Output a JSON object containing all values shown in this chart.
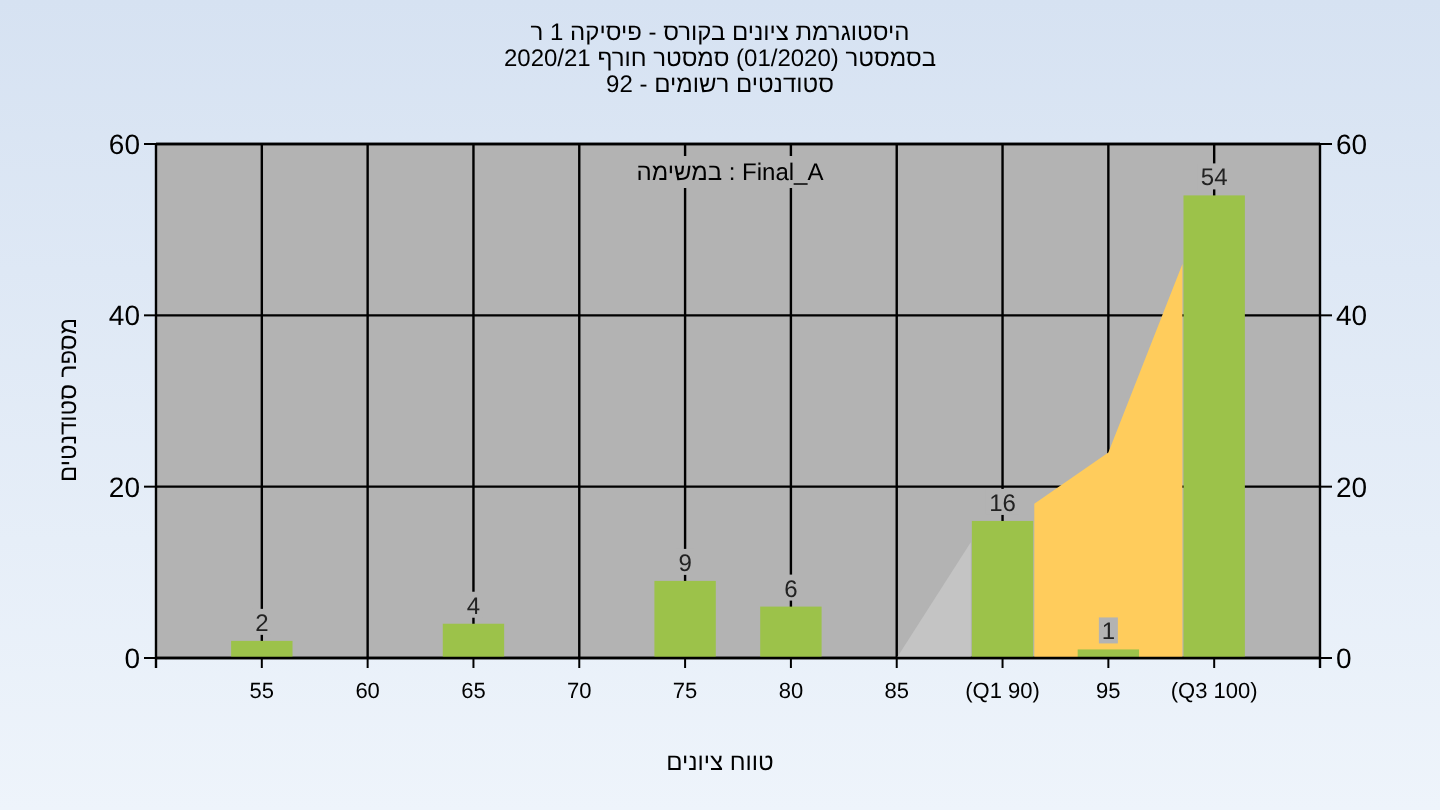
{
  "chart_data": {
    "type": "bar",
    "title": "היסטוגרמת ציונים בקורס - פיסיקה 1 ר",
    "subtitle": "בסמסטר (01/2020) סמסטר חורף 2020/21\nסטודנטים רשומים - 92",
    "xlabel": "טווח ציונים",
    "ylabel": "מספר סטודנטים",
    "annotations": [
      "במשימה : Final_A"
    ],
    "xlim": [
      50,
      105
    ],
    "xticks": [
      55,
      60,
      65,
      70,
      75,
      80,
      85,
      {
        "value": 90,
        "label": "(Q1 90)"
      },
      95,
      {
        "value": 100,
        "label": "(Q3 100)"
      }
    ],
    "ylim": [
      0,
      60
    ],
    "yticks": [
      0,
      20,
      40,
      60
    ],
    "y2lim": [
      0,
      60
    ],
    "y2ticks": [
      0,
      20,
      40,
      60
    ],
    "grid": true,
    "series": [
      {
        "type": "area",
        "color": "#c4c4c4",
        "x": [
          85,
          88.5
        ],
        "values": [
          0,
          13.5
        ]
      },
      {
        "type": "area",
        "color": "#ffcc5c",
        "x": [
          91.5,
          95,
          98.5
        ],
        "values": [
          18,
          24,
          46
        ]
      },
      {
        "color": "#9cc24a",
        "x": [
          55,
          65,
          75,
          80,
          90,
          95,
          100
        ],
        "values": [
          2,
          4,
          9,
          6,
          16,
          1,
          54
        ],
        "value_labels": [
          "2",
          "4",
          "9",
          "6",
          "16",
          "1",
          "54"
        ]
      }
    ]
  }
}
